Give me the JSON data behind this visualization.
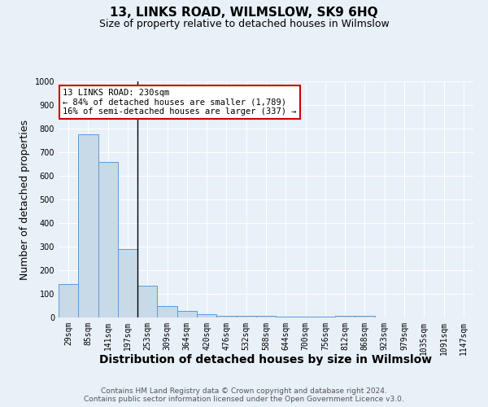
{
  "title": "13, LINKS ROAD, WILMSLOW, SK9 6HQ",
  "subtitle": "Size of property relative to detached houses in Wilmslow",
  "xlabel": "Distribution of detached houses by size in Wilmslow",
  "ylabel": "Number of detached properties",
  "footer_line1": "Contains HM Land Registry data © Crown copyright and database right 2024.",
  "footer_line2": "Contains public sector information licensed under the Open Government Licence v3.0.",
  "bin_labels": [
    "29sqm",
    "85sqm",
    "141sqm",
    "197sqm",
    "253sqm",
    "309sqm",
    "364sqm",
    "420sqm",
    "476sqm",
    "532sqm",
    "588sqm",
    "644sqm",
    "700sqm",
    "756sqm",
    "812sqm",
    "868sqm",
    "923sqm",
    "979sqm",
    "1035sqm",
    "1091sqm",
    "1147sqm"
  ],
  "bar_values": [
    140,
    775,
    660,
    290,
    135,
    50,
    27,
    15,
    8,
    8,
    7,
    5,
    5,
    5,
    6,
    8,
    0,
    0,
    0,
    0,
    0
  ],
  "bar_color": "#c8d9e8",
  "bar_edge_color": "#5b9bd5",
  "ylim": [
    0,
    1000
  ],
  "yticks": [
    0,
    100,
    200,
    300,
    400,
    500,
    600,
    700,
    800,
    900,
    1000
  ],
  "property_bin_index": 3.5,
  "annotation_title": "13 LINKS ROAD: 230sqm",
  "annotation_line2": "← 84% of detached houses are smaller (1,789)",
  "annotation_line3": "16% of semi-detached houses are larger (337) →",
  "annotation_box_color": "#ffffff",
  "annotation_box_edge_color": "#cc0000",
  "marker_line_color": "#000000",
  "background_color": "#e8f0f8",
  "plot_bg_color": "#e8f0f8",
  "grid_color": "#ffffff",
  "title_fontsize": 11,
  "subtitle_fontsize": 9,
  "axis_label_fontsize": 9,
  "tick_fontsize": 7,
  "annotation_fontsize": 7.5,
  "footer_fontsize": 6.5
}
